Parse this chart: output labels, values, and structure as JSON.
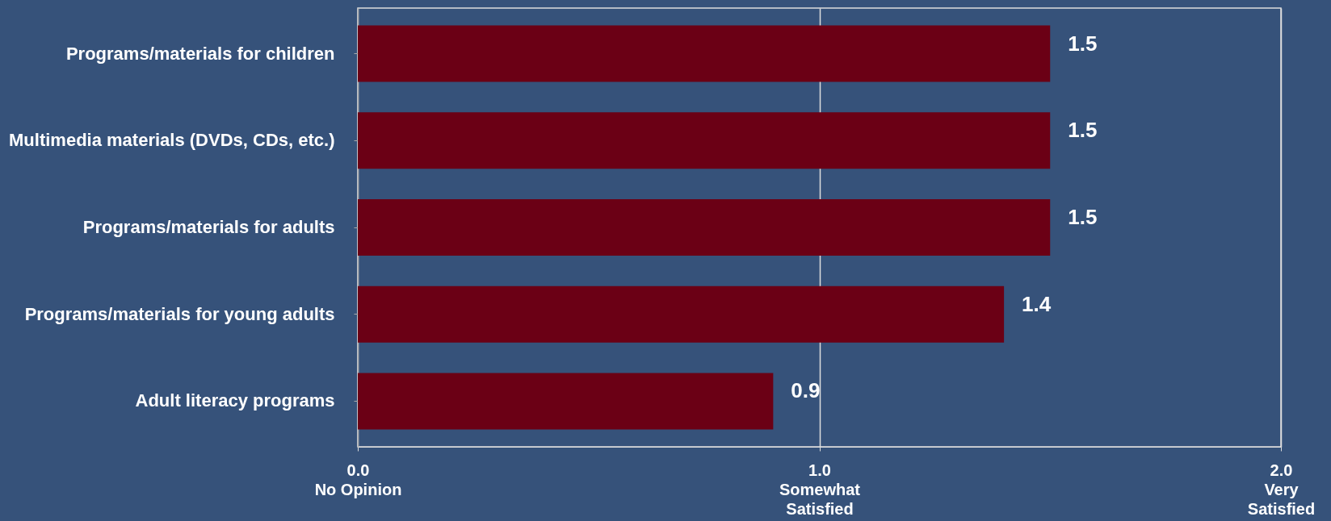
{
  "chart_data": {
    "type": "bar",
    "orientation": "horizontal",
    "categories": [
      "Programs/materials for children",
      "Multimedia materials (DVDs, CDs, etc.)",
      "Programs/materials for adults",
      "Programs/materials for young adults",
      "Adult literacy programs"
    ],
    "values": [
      1.5,
      1.5,
      1.5,
      1.4,
      0.9
    ],
    "color": "#6b0015",
    "data_labels": true,
    "xlim": [
      0,
      2
    ],
    "xticks": [
      {
        "value": 0,
        "label": "0.0\nNo Opinion"
      },
      {
        "value": 1,
        "label": "1.0\nSomewhat\nSatisfied"
      },
      {
        "value": 2,
        "label": "2.0\nVery\nSatisfied"
      }
    ],
    "grid": "x"
  }
}
